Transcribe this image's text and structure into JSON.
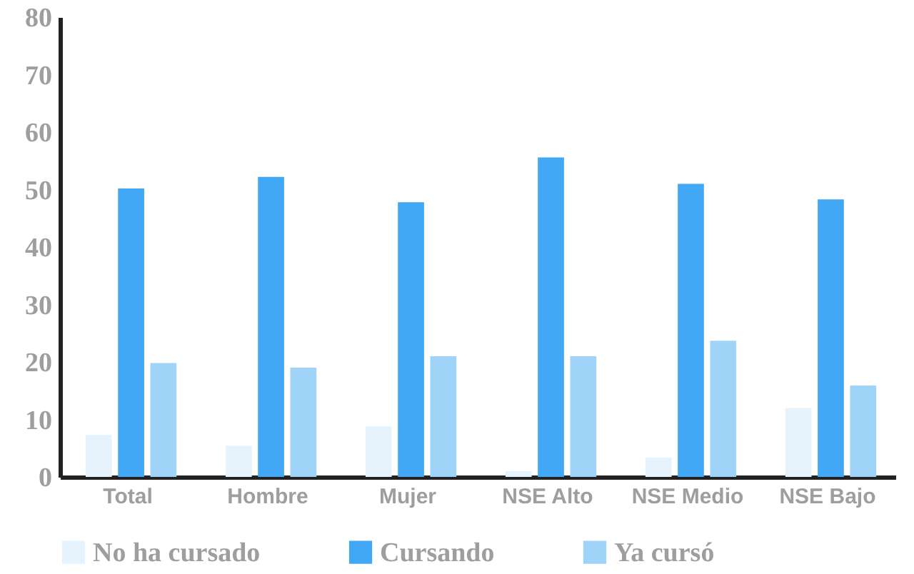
{
  "chart_data": {
    "type": "bar",
    "categories": [
      "Total",
      "Hombre",
      "Mujer",
      "NSE Alto",
      "NSE Medio",
      "NSE Bajo"
    ],
    "series": [
      {
        "name": "No ha cursado",
        "color": "#e6f3fd",
        "values": [
          7.3,
          5.4,
          8.8,
          1.0,
          3.4,
          12.0
        ]
      },
      {
        "name": "Cursando",
        "color": "#42a8f5",
        "values": [
          50.2,
          52.2,
          47.8,
          55.6,
          51.0,
          48.3
        ]
      },
      {
        "name": "Ya cursó",
        "color": "#9fd3f8",
        "values": [
          19.8,
          19.0,
          21.0,
          21.0,
          23.7,
          15.9
        ]
      }
    ],
    "ylim": [
      0,
      80
    ],
    "yticks": [
      0,
      10,
      20,
      30,
      40,
      50,
      60,
      70,
      80
    ],
    "grid": false,
    "legend": "bottom"
  }
}
